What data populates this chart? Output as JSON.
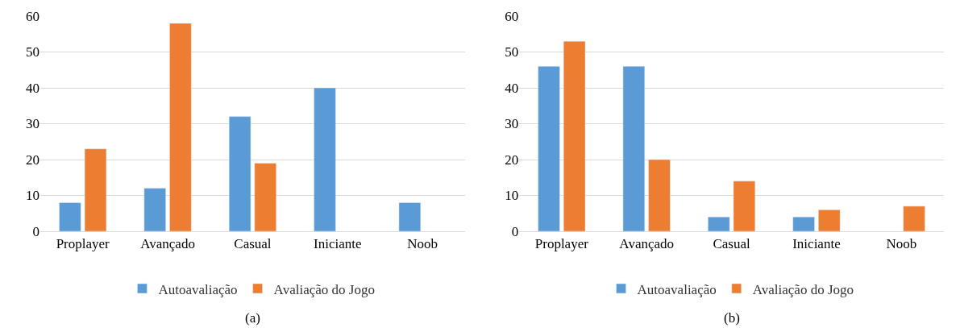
{
  "chart_data": [
    {
      "type": "bar",
      "categories": [
        "Proplayer",
        "Avançado",
        "Casual",
        "Iniciante",
        "Noob"
      ],
      "series": [
        {
          "name": "Autoavaliação",
          "color": "#5b9bd5",
          "values": [
            8,
            12,
            32,
            40,
            8
          ]
        },
        {
          "name": "Avaliação do Jogo",
          "color": "#ed7d31",
          "values": [
            23,
            58,
            19,
            null,
            null
          ]
        }
      ],
      "ylim": [
        0,
        60
      ],
      "yticks": [
        0,
        10,
        20,
        30,
        40,
        50,
        60
      ],
      "grid": "y",
      "legend": "bottom",
      "annotations": [
        "(a)"
      ]
    },
    {
      "type": "bar",
      "categories": [
        "Proplayer",
        "Avançado",
        "Casual",
        "Iniciante",
        "Noob"
      ],
      "series": [
        {
          "name": "Autoavaliação",
          "color": "#5b9bd5",
          "values": [
            46,
            46,
            4,
            4,
            null
          ]
        },
        {
          "name": "Avaliação do Jogo",
          "color": "#ed7d31",
          "values": [
            53,
            20,
            14,
            6,
            7
          ]
        }
      ],
      "ylim": [
        0,
        60
      ],
      "yticks": [
        0,
        10,
        20,
        30,
        40,
        50,
        60
      ],
      "grid": "y",
      "legend": "bottom",
      "annotations": [
        "(b)"
      ]
    }
  ]
}
